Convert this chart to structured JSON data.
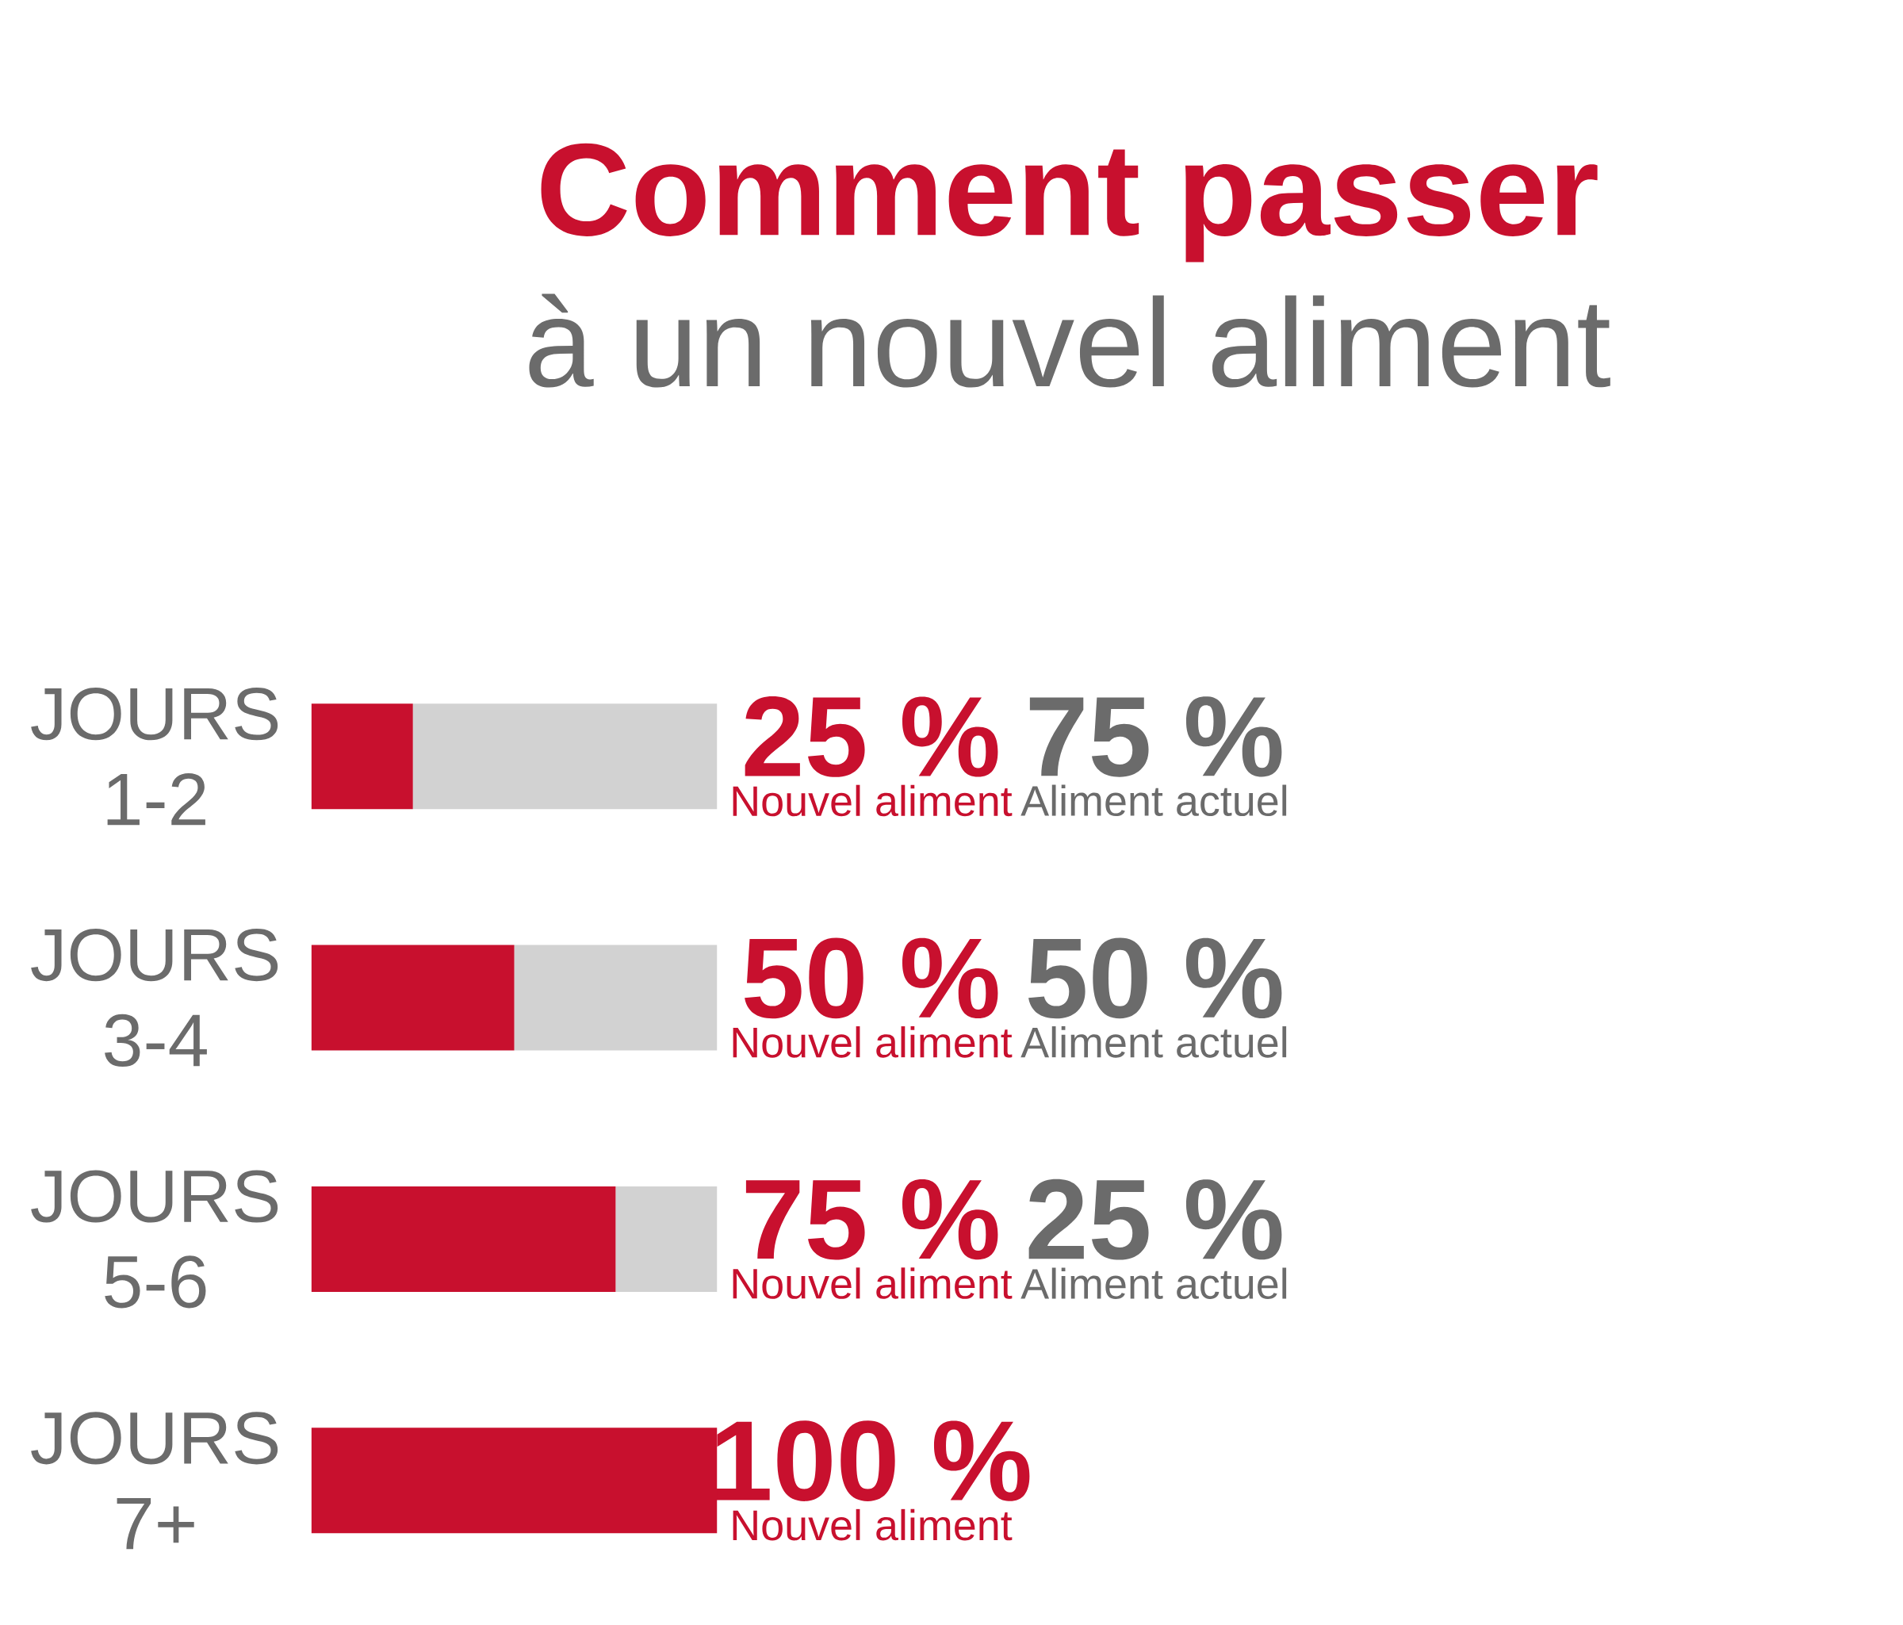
{
  "chart_data": {
    "type": "bar",
    "orientation": "horizontal",
    "stacked": true,
    "title": "Comment passer",
    "subtitle": "à un nouvel aliment",
    "categories": [
      "JOURS 1-2",
      "JOURS 3-4",
      "JOURS 5-6",
      "JOURS 7+"
    ],
    "series": [
      {
        "name": "Nouvel aliment",
        "color": "#c8102e",
        "values": [
          25,
          50,
          75,
          100
        ],
        "value_labels": [
          "25 %",
          "50 %",
          "75 %",
          "100 %"
        ]
      },
      {
        "name": "Aliment actuel",
        "color": "#d2d2d2",
        "values": [
          75,
          50,
          25,
          null
        ],
        "value_labels": [
          "75 %",
          "50 %",
          "25 %",
          null
        ]
      }
    ]
  }
}
